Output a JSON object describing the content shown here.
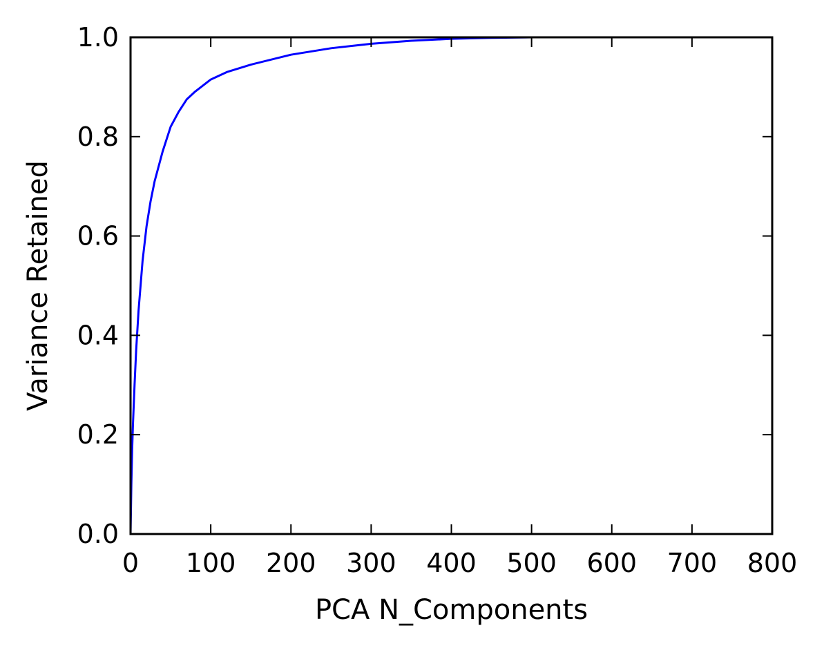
{
  "chart_data": {
    "type": "line",
    "title": "",
    "xlabel": "PCA N_Components",
    "ylabel": "Variance Retained",
    "xlim": [
      0,
      800
    ],
    "ylim": [
      0.0,
      1.0
    ],
    "x_ticks": [
      "0",
      "100",
      "200",
      "300",
      "400",
      "500",
      "600",
      "700",
      "800"
    ],
    "y_ticks": [
      "0.0",
      "0.2",
      "0.4",
      "0.6",
      "0.8",
      "1.0"
    ],
    "grid": false,
    "legend": "none",
    "series": [
      {
        "color": "#0000ff",
        "x": [
          0,
          1,
          2,
          3,
          5,
          7,
          10,
          15,
          20,
          25,
          30,
          40,
          50,
          60,
          70,
          80,
          100,
          120,
          150,
          200,
          250,
          300,
          350,
          400,
          450,
          500,
          550,
          600
        ],
        "y": [
          0.0,
          0.1,
          0.17,
          0.22,
          0.3,
          0.37,
          0.45,
          0.55,
          0.62,
          0.67,
          0.71,
          0.77,
          0.82,
          0.85,
          0.875,
          0.89,
          0.915,
          0.93,
          0.945,
          0.965,
          0.978,
          0.987,
          0.993,
          0.997,
          0.999,
          1.0,
          1.0,
          1.0
        ]
      }
    ]
  }
}
